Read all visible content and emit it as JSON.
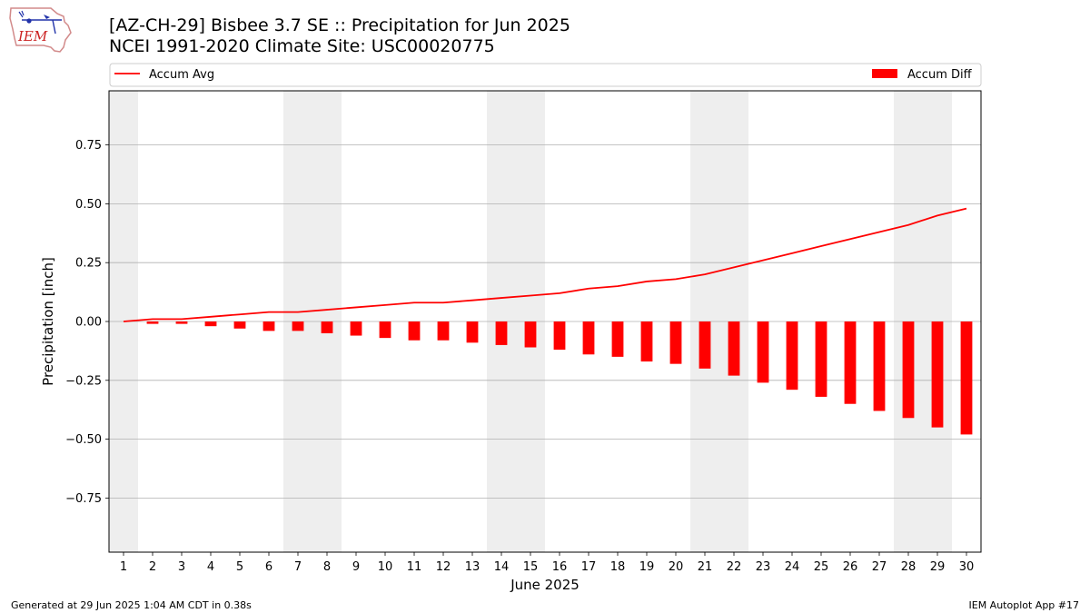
{
  "header": {
    "title_line1": "[AZ-CH-29] Bisbee 3.7 SE :: Precipitation for Jun 2025",
    "title_line2": "NCEI 1991-2020 Climate Site: USC00020775",
    "logo_text": "IEM"
  },
  "footer": {
    "generated": "Generated at 29 Jun 2025 1:04 AM CDT in 0.38s",
    "app": "IEM Autoplot App #17"
  },
  "colors": {
    "accum_avg_line": "#ff0000",
    "accum_diff_bar": "#ff0000",
    "weekend_shade": "#eeeeee",
    "grid": "#b0b0b0"
  },
  "chart_data": {
    "type": "bar",
    "xlabel": "June 2025",
    "ylabel": "Precipitation [inch]",
    "x": [
      1,
      2,
      3,
      4,
      5,
      6,
      7,
      8,
      9,
      10,
      11,
      12,
      13,
      14,
      15,
      16,
      17,
      18,
      19,
      20,
      21,
      22,
      23,
      24,
      25,
      26,
      27,
      28,
      29,
      30
    ],
    "xlim": [
      0.5,
      30.5
    ],
    "ylim": [
      -0.98,
      0.98
    ],
    "yticks": [
      -0.75,
      -0.5,
      -0.25,
      0.0,
      0.25,
      0.5,
      0.75
    ],
    "ytick_labels": [
      "−0.75",
      "−0.50",
      "−0.25",
      "0.00",
      "0.25",
      "0.50",
      "0.75"
    ],
    "grid": "horizontal",
    "legend_placement": "top, above plot",
    "shaded_days": [
      1,
      7,
      8,
      14,
      15,
      21,
      22,
      28,
      29
    ],
    "series": [
      {
        "name": "Accum Avg",
        "kind": "line",
        "values": [
          0.0,
          0.01,
          0.01,
          0.02,
          0.03,
          0.04,
          0.04,
          0.05,
          0.06,
          0.07,
          0.08,
          0.08,
          0.09,
          0.1,
          0.11,
          0.12,
          0.14,
          0.15,
          0.17,
          0.18,
          0.2,
          0.23,
          0.26,
          0.29,
          0.32,
          0.35,
          0.38,
          0.41,
          0.45,
          0.48
        ]
      },
      {
        "name": "Accum Diff",
        "kind": "bar",
        "values": [
          0.0,
          -0.01,
          -0.01,
          -0.02,
          -0.03,
          -0.04,
          -0.04,
          -0.05,
          -0.06,
          -0.07,
          -0.08,
          -0.08,
          -0.09,
          -0.1,
          -0.11,
          -0.12,
          -0.14,
          -0.15,
          -0.17,
          -0.18,
          -0.2,
          -0.23,
          -0.26,
          -0.29,
          -0.32,
          -0.35,
          -0.38,
          -0.41,
          -0.45,
          -0.48
        ]
      }
    ]
  }
}
